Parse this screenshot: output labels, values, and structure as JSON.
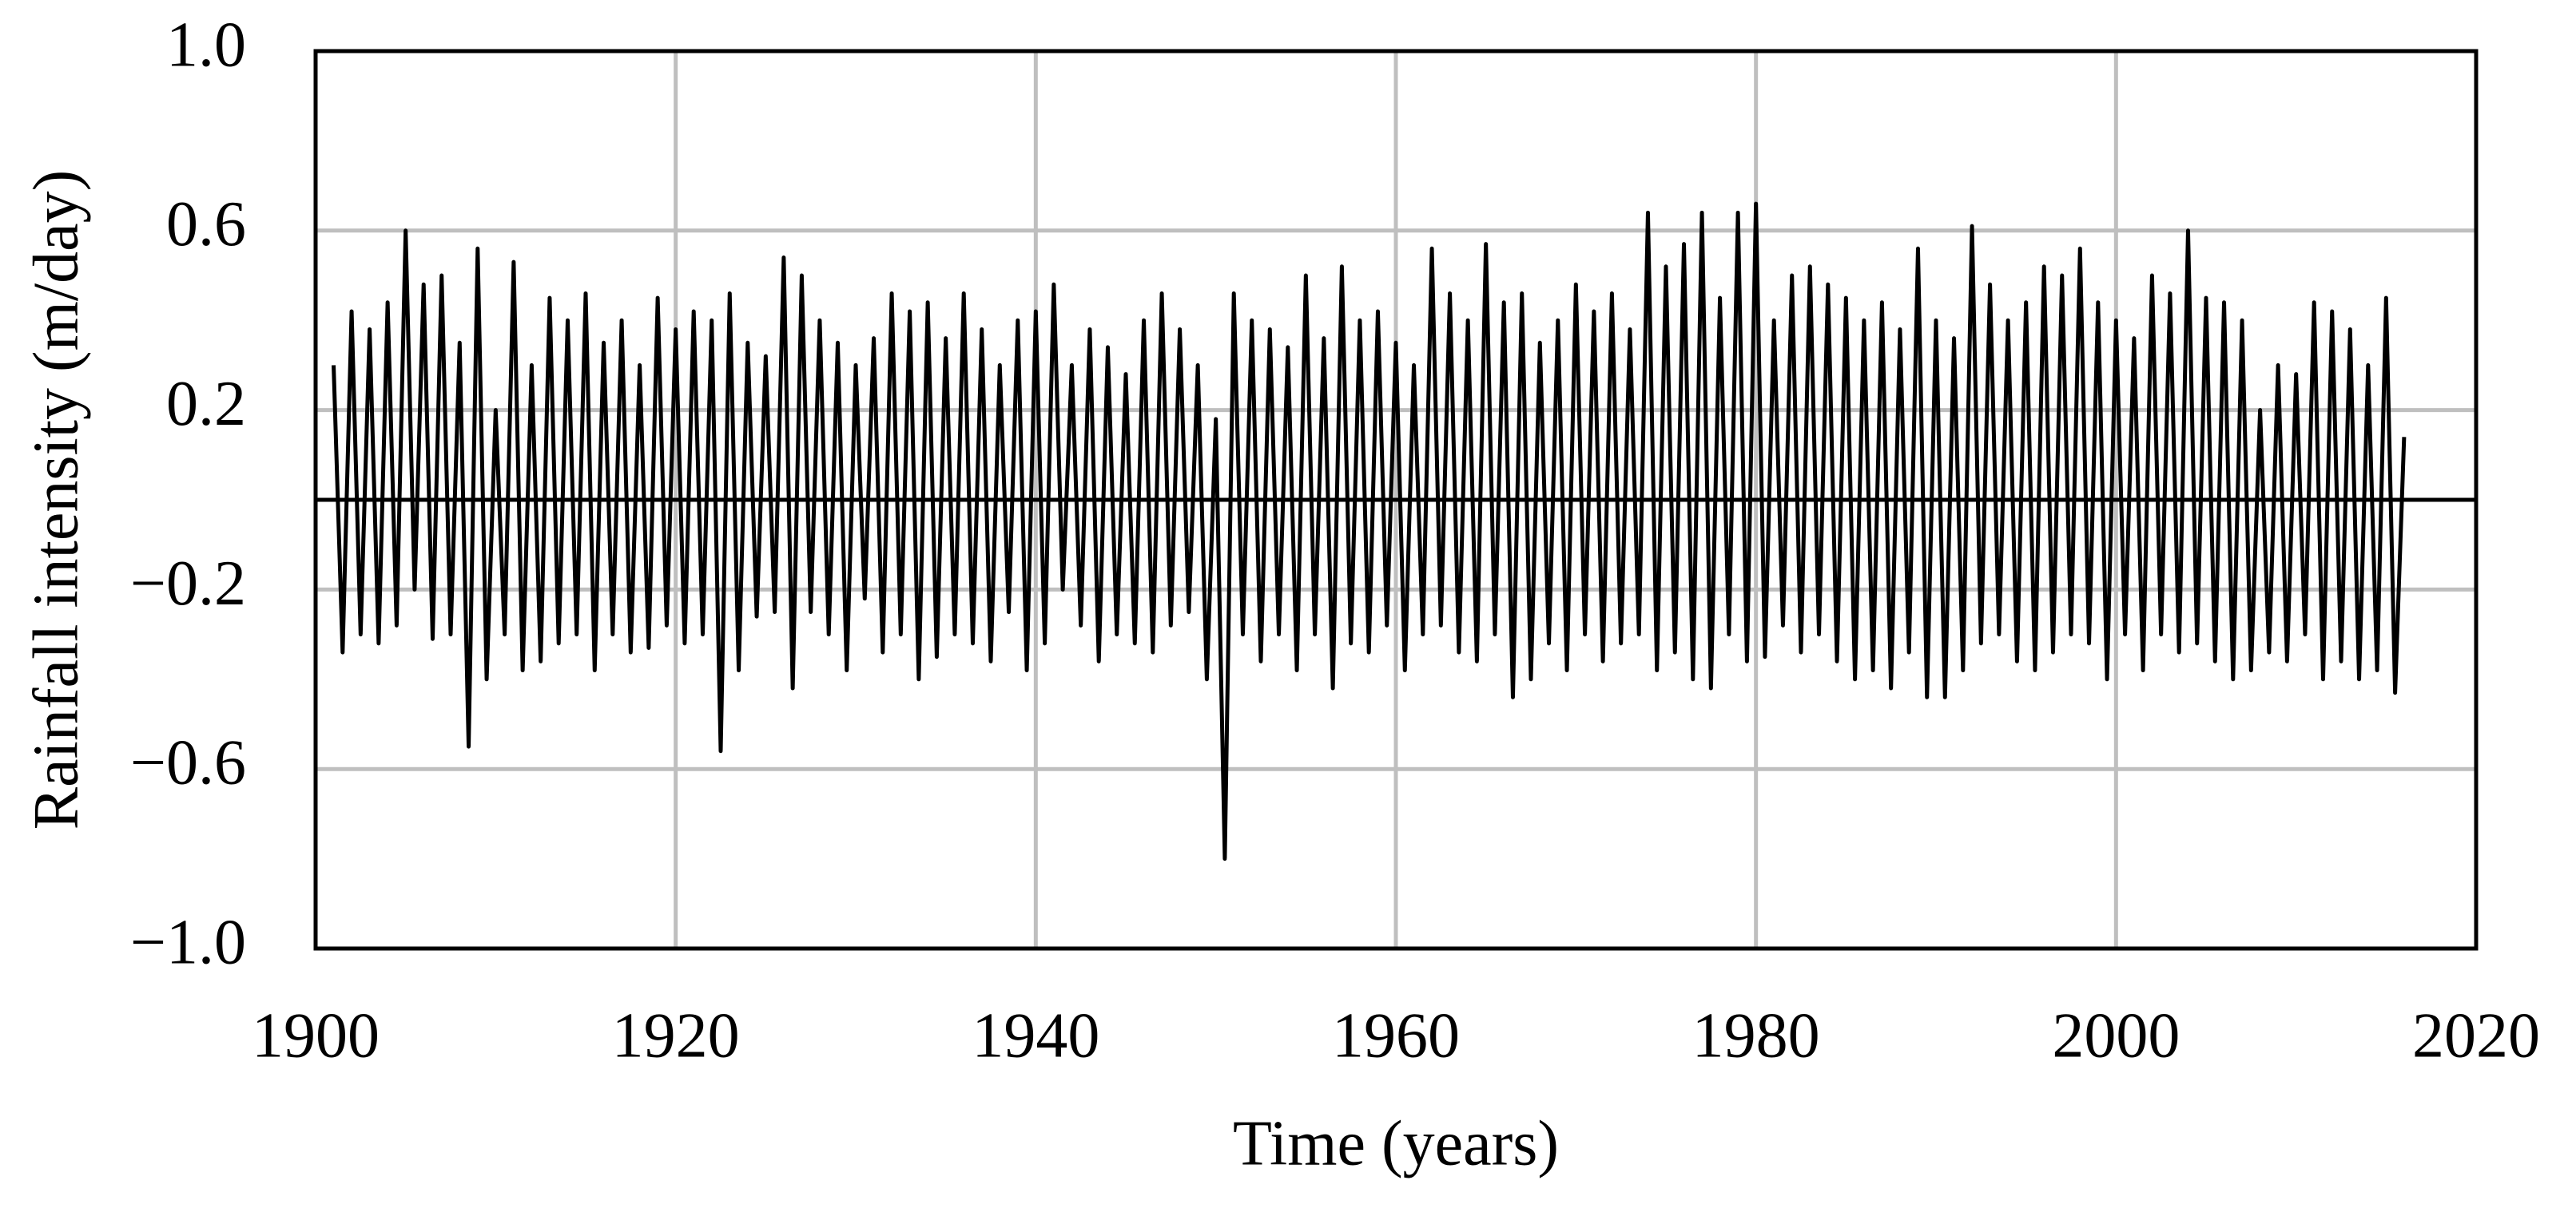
{
  "chart_data": {
    "type": "line",
    "x_label": "Time (years)",
    "y_label": "Rainfall intensity (m/day)",
    "color": "#000000",
    "grid": true,
    "xlim": [
      1900,
      2020
    ],
    "xticks": [
      1900,
      1920,
      1940,
      1960,
      1980,
      2000,
      2020
    ],
    "ylim": [
      -1,
      1
    ],
    "yticks": [
      {
        "value": -1,
        "label": "−1.0"
      },
      {
        "value": -0.6,
        "label": "−0.6"
      },
      {
        "value": -0.2,
        "label": "−0.2"
      },
      0.2,
      0.6,
      {
        "value": 1,
        "label": "1.0"
      }
    ],
    "x": [
      1901,
      1901.5,
      1902,
      1902.5,
      1903,
      1903.5,
      1904,
      1904.5,
      1905,
      1905.5,
      1906,
      1906.5,
      1907,
      1907.5,
      1908,
      1908.5,
      1909,
      1909.5,
      1910,
      1910.5,
      1911,
      1911.5,
      1912,
      1912.5,
      1913,
      1913.5,
      1914,
      1914.5,
      1915,
      1915.5,
      1916,
      1916.5,
      1917,
      1917.5,
      1918,
      1918.5,
      1919,
      1919.5,
      1920,
      1920.5,
      1921,
      1921.5,
      1922,
      1922.5,
      1923,
      1923.5,
      1924,
      1924.5,
      1925,
      1925.5,
      1926,
      1926.5,
      1927,
      1927.5,
      1928,
      1928.5,
      1929,
      1929.5,
      1930,
      1930.5,
      1931,
      1931.5,
      1932,
      1932.5,
      1933,
      1933.5,
      1934,
      1934.5,
      1935,
      1935.5,
      1936,
      1936.5,
      1937,
      1937.5,
      1938,
      1938.5,
      1939,
      1939.5,
      1940,
      1940.5,
      1941,
      1941.5,
      1942,
      1942.5,
      1943,
      1943.5,
      1944,
      1944.5,
      1945,
      1945.5,
      1946,
      1946.5,
      1947,
      1947.5,
      1948,
      1948.5,
      1949,
      1949.5,
      1950,
      1950.5,
      1951,
      1951.5,
      1952,
      1952.5,
      1953,
      1953.5,
      1954,
      1954.5,
      1955,
      1955.5,
      1956,
      1956.5,
      1957,
      1957.5,
      1958,
      1958.5,
      1959,
      1959.5,
      1960,
      1960.5,
      1961,
      1961.5,
      1962,
      1962.5,
      1963,
      1963.5,
      1964,
      1964.5,
      1965,
      1965.5,
      1966,
      1966.5,
      1967,
      1967.5,
      1968,
      1968.5,
      1969,
      1969.5,
      1970,
      1970.5,
      1971,
      1971.5,
      1972,
      1972.5,
      1973,
      1973.5,
      1974,
      1974.5,
      1975,
      1975.5,
      1976,
      1976.5,
      1977,
      1977.5,
      1978,
      1978.5,
      1979,
      1979.5,
      1980,
      1980.5,
      1981,
      1981.5,
      1982,
      1982.5,
      1983,
      1983.5,
      1984,
      1984.5,
      1985,
      1985.5,
      1986,
      1986.5,
      1987,
      1987.5,
      1988,
      1988.5,
      1989,
      1989.5,
      1990,
      1990.5,
      1991,
      1991.5,
      1992,
      1992.5,
      1993,
      1993.5,
      1994,
      1994.5,
      1995,
      1995.5,
      1996,
      1996.5,
      1997,
      1997.5,
      1998,
      1998.5,
      1999,
      1999.5,
      2000,
      2000.5,
      2001,
      2001.5,
      2002,
      2002.5,
      2003,
      2003.5,
      2004,
      2004.5,
      2005,
      2005.5,
      2006,
      2006.5,
      2007,
      2007.5,
      2008,
      2008.5,
      2009,
      2009.5,
      2010,
      2010.5,
      2011,
      2011.5,
      2012,
      2012.5,
      2013,
      2013.5,
      2014,
      2014.5,
      2015,
      2015.5,
      2016
    ],
    "values": [
      0.3,
      -0.34,
      0.42,
      -0.3,
      0.38,
      -0.32,
      0.44,
      -0.28,
      0.6,
      -0.2,
      0.48,
      -0.31,
      0.5,
      -0.3,
      0.35,
      -0.55,
      0.56,
      -0.4,
      0.2,
      -0.3,
      0.53,
      -0.38,
      0.3,
      -0.36,
      0.45,
      -0.32,
      0.4,
      -0.3,
      0.46,
      -0.38,
      0.35,
      -0.3,
      0.4,
      -0.34,
      0.3,
      -0.33,
      0.45,
      -0.28,
      0.38,
      -0.32,
      0.42,
      -0.3,
      0.4,
      -0.56,
      0.46,
      -0.38,
      0.35,
      -0.26,
      0.32,
      -0.25,
      0.54,
      -0.42,
      0.5,
      -0.25,
      0.4,
      -0.3,
      0.35,
      -0.38,
      0.3,
      -0.22,
      0.36,
      -0.34,
      0.46,
      -0.3,
      0.42,
      -0.4,
      0.44,
      -0.35,
      0.36,
      -0.3,
      0.46,
      -0.32,
      0.38,
      -0.36,
      0.3,
      -0.25,
      0.4,
      -0.38,
      0.42,
      -0.32,
      0.48,
      -0.2,
      0.3,
      -0.28,
      0.38,
      -0.36,
      0.34,
      -0.3,
      0.28,
      -0.32,
      0.4,
      -0.34,
      0.46,
      -0.28,
      0.38,
      -0.25,
      0.3,
      -0.4,
      0.18,
      -0.8,
      0.46,
      -0.3,
      0.4,
      -0.36,
      0.38,
      -0.3,
      0.34,
      -0.38,
      0.5,
      -0.3,
      0.36,
      -0.42,
      0.52,
      -0.32,
      0.4,
      -0.34,
      0.42,
      -0.28,
      0.35,
      -0.38,
      0.3,
      -0.3,
      0.56,
      -0.28,
      0.46,
      -0.34,
      0.4,
      -0.36,
      0.57,
      -0.3,
      0.44,
      -0.44,
      0.46,
      -0.4,
      0.35,
      -0.32,
      0.4,
      -0.38,
      0.48,
      -0.3,
      0.42,
      -0.36,
      0.46,
      -0.32,
      0.38,
      -0.3,
      0.64,
      -0.38,
      0.52,
      -0.34,
      0.57,
      -0.4,
      0.64,
      -0.42,
      0.45,
      -0.3,
      0.64,
      -0.36,
      0.66,
      -0.35,
      0.4,
      -0.28,
      0.5,
      -0.34,
      0.52,
      -0.3,
      0.48,
      -0.36,
      0.45,
      -0.4,
      0.4,
      -0.38,
      0.44,
      -0.42,
      0.38,
      -0.34,
      0.56,
      -0.44,
      0.4,
      -0.44,
      0.36,
      -0.38,
      0.61,
      -0.32,
      0.48,
      -0.3,
      0.4,
      -0.36,
      0.44,
      -0.38,
      0.52,
      -0.34,
      0.5,
      -0.3,
      0.56,
      -0.32,
      0.44,
      -0.4,
      0.4,
      -0.3,
      0.36,
      -0.38,
      0.5,
      -0.3,
      0.46,
      -0.34,
      0.6,
      -0.32,
      0.45,
      -0.36,
      0.44,
      -0.4,
      0.4,
      -0.38,
      0.2,
      -0.34,
      0.3,
      -0.36,
      0.28,
      -0.3,
      0.44,
      -0.4,
      0.42,
      -0.36,
      0.38,
      -0.4,
      0.3,
      -0.38,
      0.45,
      -0.43,
      0.14
    ]
  }
}
